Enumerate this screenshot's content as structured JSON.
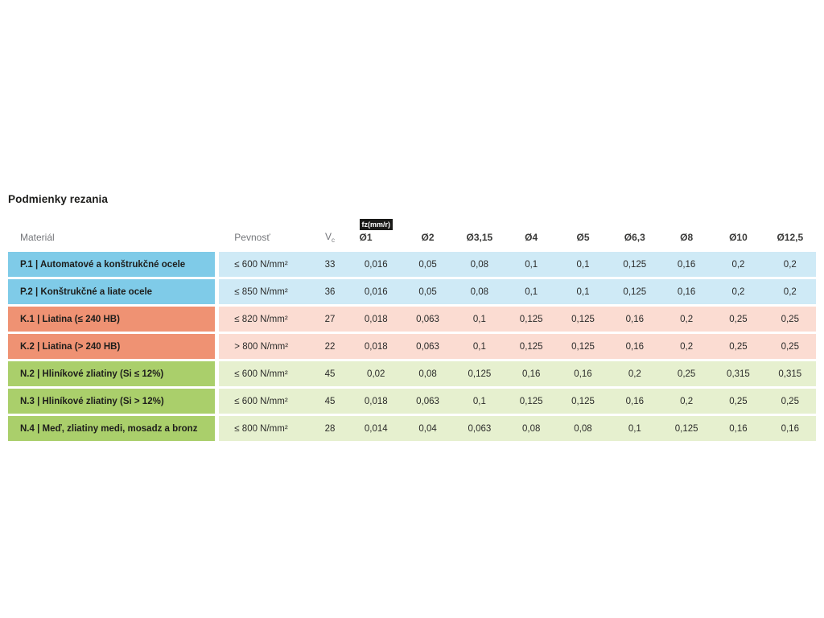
{
  "page": {
    "background": "#ffffff"
  },
  "table": {
    "title": "Podmienky rezania",
    "header": {
      "material": "Materiál",
      "strength": "Pevnosť",
      "vc_symbol": "V",
      "vc_subscript": "c",
      "fz_badge": "fz(mm/r)",
      "diameters": [
        "Ø1",
        "Ø2",
        "Ø3,15",
        "Ø4",
        "Ø5",
        "Ø6,3",
        "Ø8",
        "Ø10",
        "Ø12,5"
      ]
    },
    "colors": {
      "badge_bg": "#1a1a18",
      "badge_text": "#ffffff",
      "P": {
        "label": "#7fcbe8",
        "cell": "#cfeaf6"
      },
      "K": {
        "label": "#ef9273",
        "cell": "#fbdcd2"
      },
      "N": {
        "label": "#aacf6b",
        "cell": "#e6f0cf"
      }
    },
    "rows": [
      {
        "group": "P",
        "material": "P.1 | Automatové a konštrukčné ocele",
        "strength": "≤ 600 N/mm²",
        "vc": "33",
        "values": [
          "0,016",
          "0,05",
          "0,08",
          "0,1",
          "0,1",
          "0,125",
          "0,16",
          "0,2",
          "0,2"
        ]
      },
      {
        "group": "P",
        "material": "P.2 | Konštrukčné a liate ocele",
        "strength": "≤ 850 N/mm²",
        "vc": "36",
        "values": [
          "0,016",
          "0,05",
          "0,08",
          "0,1",
          "0,1",
          "0,125",
          "0,16",
          "0,2",
          "0,2"
        ]
      },
      {
        "group": "K",
        "material": "K.1 | Liatina (≤ 240 HB)",
        "strength": "≤ 820 N/mm²",
        "vc": "27",
        "values": [
          "0,018",
          "0,063",
          "0,1",
          "0,125",
          "0,125",
          "0,16",
          "0,2",
          "0,25",
          "0,25"
        ]
      },
      {
        "group": "K",
        "material": "K.2 | Liatina (> 240 HB)",
        "strength": "> 800 N/mm²",
        "vc": "22",
        "values": [
          "0,018",
          "0,063",
          "0,1",
          "0,125",
          "0,125",
          "0,16",
          "0,2",
          "0,25",
          "0,25"
        ]
      },
      {
        "group": "N",
        "material": "N.2 | Hliníkové zliatiny (Si ≤ 12%)",
        "strength": "≤ 600 N/mm²",
        "vc": "45",
        "values": [
          "0,02",
          "0,08",
          "0,125",
          "0,16",
          "0,16",
          "0,2",
          "0,25",
          "0,315",
          "0,315"
        ]
      },
      {
        "group": "N",
        "material": "N.3 | Hliníkové zliatiny (Si > 12%)",
        "strength": "≤ 600 N/mm²",
        "vc": "45",
        "values": [
          "0,018",
          "0,063",
          "0,1",
          "0,125",
          "0,125",
          "0,16",
          "0,2",
          "0,25",
          "0,25"
        ]
      },
      {
        "group": "N",
        "material": "N.4 | Meď, zliatiny medi, mosadz a bronz",
        "strength": "≤ 800 N/mm²",
        "vc": "28",
        "values": [
          "0,014",
          "0,04",
          "0,063",
          "0,08",
          "0,08",
          "0,1",
          "0,125",
          "0,16",
          "0,16"
        ]
      }
    ]
  }
}
